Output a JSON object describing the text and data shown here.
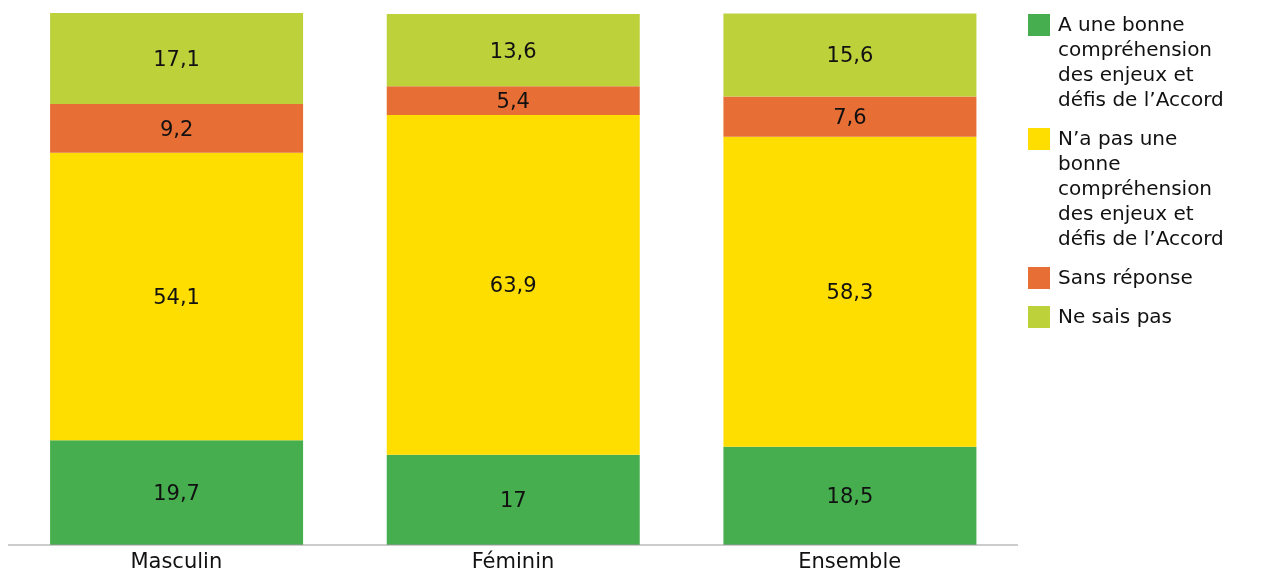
{
  "chart_data": {
    "type": "bar",
    "stacked": true,
    "categories": [
      "Masculin",
      "Féminin",
      "Ensemble"
    ],
    "tick_labels": "x",
    "legend": "top right",
    "series": [
      {
        "name": "A une bonne compréhension des enjeux et défis de l’Accord",
        "color": "#47ae4f",
        "values": [
          19.7,
          17,
          18.5
        ],
        "value_labels": [
          "19,7",
          "17",
          "18,5"
        ]
      },
      {
        "name": "N’a pas une bonne compréhension des enjeux et défis de l’Accord",
        "color": "#fedd00",
        "values": [
          54.1,
          63.9,
          58.3
        ],
        "value_labels": [
          "54,1",
          "63,9",
          "58,3"
        ]
      },
      {
        "name": "Sans réponse",
        "color": "#e76f36",
        "values": [
          9.2,
          5.4,
          7.6
        ],
        "value_labels": [
          "9,2",
          "5,4",
          "7,6"
        ]
      },
      {
        "name": "Ne sais pas",
        "color": "#bdd13b",
        "values": [
          17.1,
          13.6,
          15.6
        ],
        "value_labels": [
          "17,1",
          "13,6",
          "15,6"
        ]
      }
    ]
  }
}
